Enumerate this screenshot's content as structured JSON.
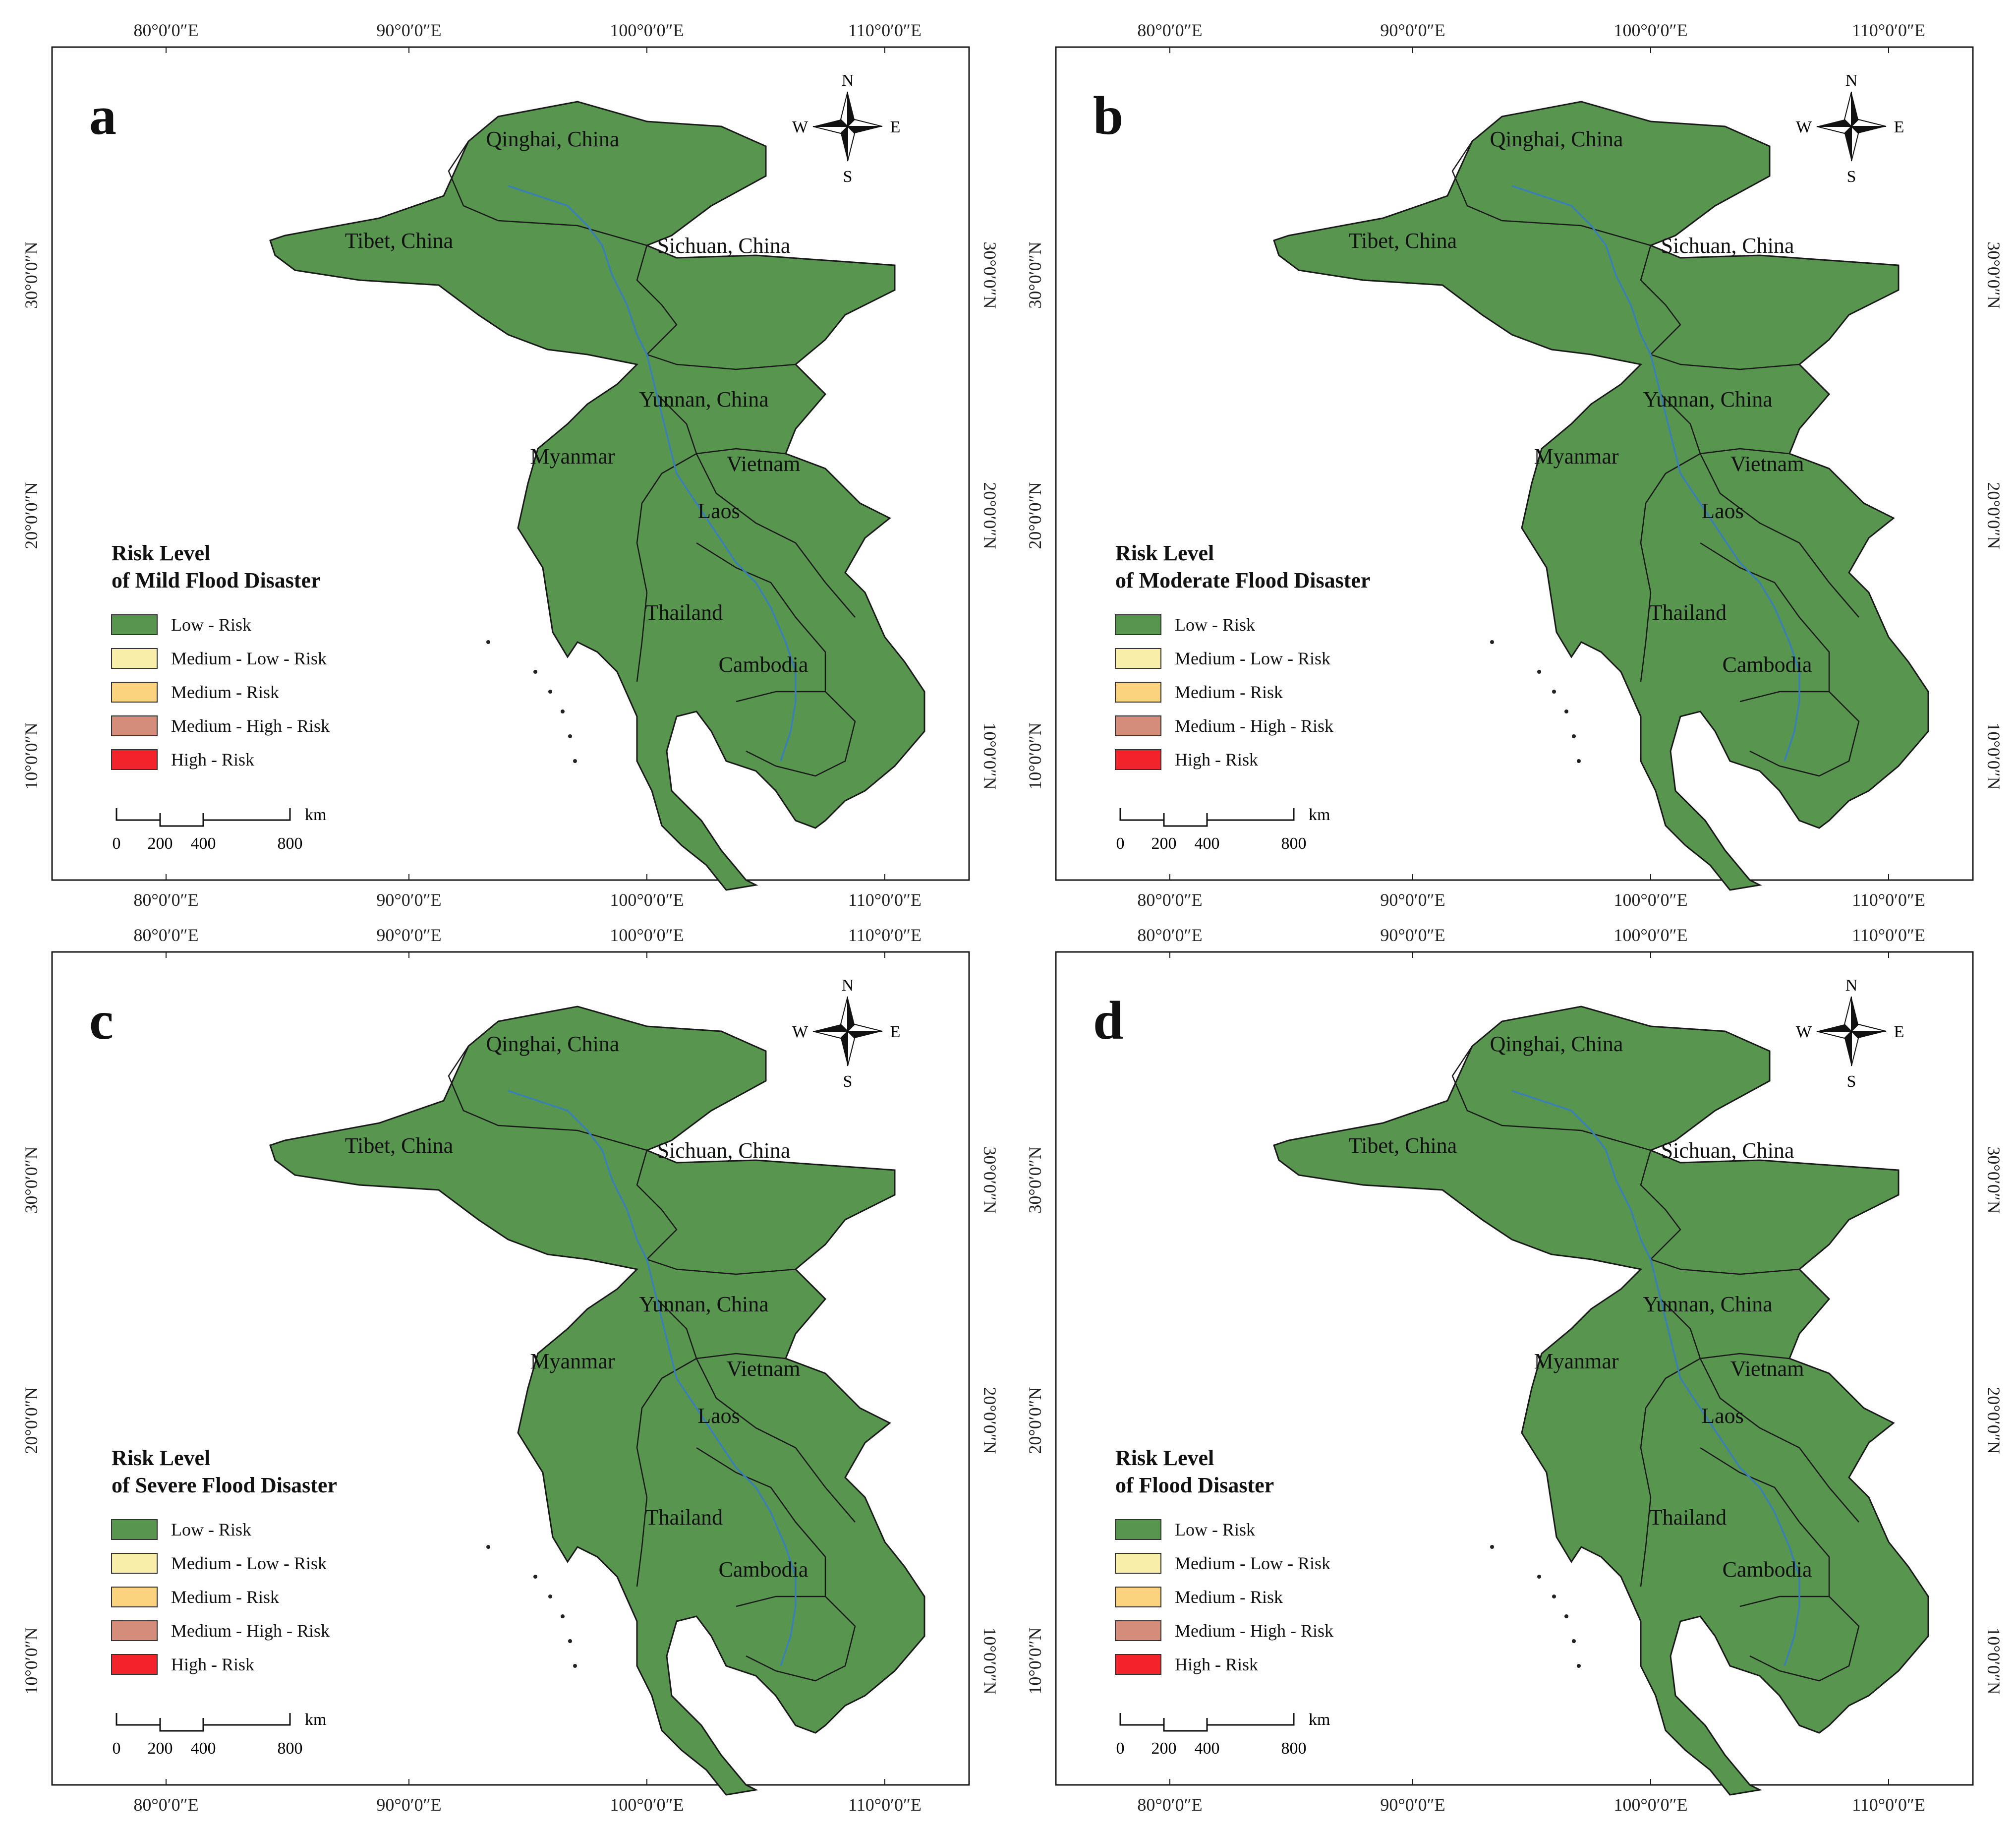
{
  "colors": {
    "low": "#58964f",
    "medium_low": "#f8eeaa",
    "medium": "#fbd27e",
    "medium_high": "#d58d7b",
    "high": "#f2232b",
    "river": "#3a7fb5",
    "border": "#1a1a1a"
  },
  "coordinates": {
    "lon_labels": [
      "80°0′0″E",
      "90°0′0″E",
      "100°0′0″E",
      "110°0′0″E"
    ],
    "lat_labels": [
      "30°0′0″N",
      "20°0′0″N",
      "10°0′0″N"
    ]
  },
  "regions": [
    "Qinghai, China",
    "Tibet, China",
    "Sichuan, China",
    "Yunnan, China",
    "Myanmar",
    "Vietnam",
    "Laos",
    "Thailand",
    "Cambodia"
  ],
  "compass": {
    "n": "N",
    "s": "S",
    "w": "W",
    "e": "E",
    "icon": "north-arrow-icon"
  },
  "scale_bar": {
    "unit": "km",
    "ticks": [
      "0",
      "200",
      "400",
      "800"
    ]
  },
  "legend_items": [
    "Low - Risk",
    "Medium - Low - Risk",
    "Medium - Risk",
    "Medium - High - Risk",
    "High - Risk"
  ],
  "panels": [
    {
      "letter": "a",
      "legend_title": [
        "Risk Level",
        "of  Mild Flood Disaster"
      ]
    },
    {
      "letter": "b",
      "legend_title": [
        "Risk Level",
        "of  Moderate Flood Disaster"
      ]
    },
    {
      "letter": "c",
      "legend_title": [
        "Risk Level",
        "of Severe Flood Disaster"
      ]
    },
    {
      "letter": "d",
      "legend_title": [
        "Risk Level",
        "of Flood Disaster"
      ]
    }
  ]
}
